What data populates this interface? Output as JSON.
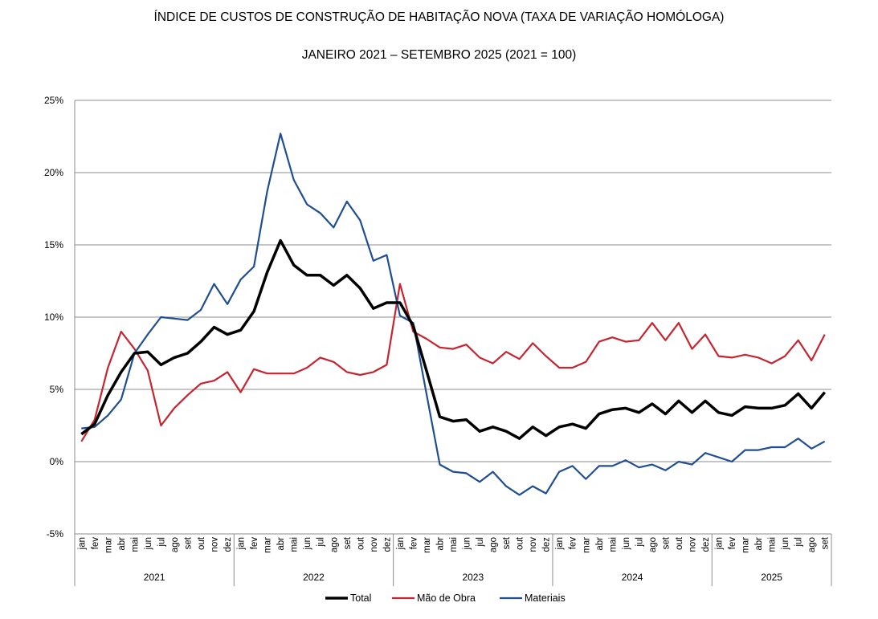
{
  "chart_data": {
    "type": "line",
    "title": "ÍNDICE DE CUSTOS DE CONSTRUÇÃO DE HABITAÇÃO NOVA (TAXA DE VARIAÇÃO HOMÓLOGA)",
    "subtitle": "JANEIRO 2021 – SETEMBRO 2025 (2021 = 100)",
    "ylim": [
      -5,
      25
    ],
    "yticks": [
      -5,
      0,
      5,
      10,
      15,
      20,
      25
    ],
    "ytick_labels": [
      "-5%",
      "0%",
      "5%",
      "10%",
      "15%",
      "20%",
      "25%"
    ],
    "grid": true,
    "legend_position": "bottom",
    "months": [
      "jan",
      "fev",
      "mar",
      "abr",
      "mai",
      "jun",
      "jul",
      "ago",
      "set",
      "out",
      "nov",
      "dez"
    ],
    "years": [
      {
        "label": "2021",
        "months": 12
      },
      {
        "label": "2022",
        "months": 12
      },
      {
        "label": "2023",
        "months": 12
      },
      {
        "label": "2024",
        "months": 12
      },
      {
        "label": "2025",
        "months": 9
      }
    ],
    "series": [
      {
        "name": "Total",
        "color": "#000000",
        "values": [
          1.9,
          2.6,
          4.6,
          6.2,
          7.5,
          7.6,
          6.7,
          7.2,
          7.5,
          8.3,
          9.3,
          8.8,
          9.1,
          10.4,
          13.1,
          15.3,
          13.6,
          12.9,
          12.9,
          12.2,
          12.9,
          12.0,
          10.6,
          11.0,
          11.0,
          9.4,
          6.3,
          3.1,
          2.8,
          2.9,
          2.1,
          2.4,
          2.1,
          1.6,
          2.4,
          1.8,
          2.4,
          2.6,
          2.3,
          3.3,
          3.6,
          3.7,
          3.4,
          4.0,
          3.3,
          4.2,
          3.4,
          4.2,
          3.4,
          3.2,
          3.8,
          3.7,
          3.7,
          3.9,
          4.7,
          3.7,
          4.8
        ]
      },
      {
        "name": "Mão de Obra",
        "color": "#c8242f",
        "values": [
          1.4,
          2.9,
          6.5,
          9.0,
          7.8,
          6.3,
          2.5,
          3.7,
          4.6,
          5.4,
          5.6,
          6.2,
          4.8,
          6.4,
          6.1,
          6.1,
          6.1,
          6.5,
          7.2,
          6.9,
          6.2,
          6.0,
          6.2,
          6.7,
          12.3,
          9.0,
          8.5,
          7.9,
          7.8,
          8.1,
          7.2,
          6.8,
          7.6,
          7.1,
          8.2,
          7.3,
          6.5,
          6.5,
          6.9,
          8.3,
          8.6,
          8.3,
          8.4,
          9.6,
          8.4,
          9.6,
          7.8,
          8.8,
          7.3,
          7.2,
          7.4,
          7.2,
          6.8,
          7.3,
          8.4,
          7.0,
          8.8
        ]
      },
      {
        "name": "Materiais",
        "color": "#1f4e93",
        "values": [
          2.3,
          2.4,
          3.2,
          4.3,
          7.5,
          8.8,
          10.0,
          9.9,
          9.8,
          10.5,
          12.3,
          10.9,
          12.6,
          13.5,
          18.7,
          22.7,
          19.5,
          17.8,
          17.2,
          16.2,
          18.0,
          16.7,
          13.9,
          14.3,
          10.1,
          9.6,
          4.7,
          -0.2,
          -0.7,
          -0.8,
          -1.4,
          -0.7,
          -1.7,
          -2.3,
          -1.7,
          -2.2,
          -0.7,
          -0.3,
          -1.2,
          -0.3,
          -0.3,
          0.1,
          -0.4,
          -0.2,
          -0.6,
          0.0,
          -0.2,
          0.6,
          0.3,
          0.0,
          0.8,
          0.8,
          1.0,
          1.0,
          1.6,
          0.9,
          1.4
        ]
      }
    ]
  }
}
